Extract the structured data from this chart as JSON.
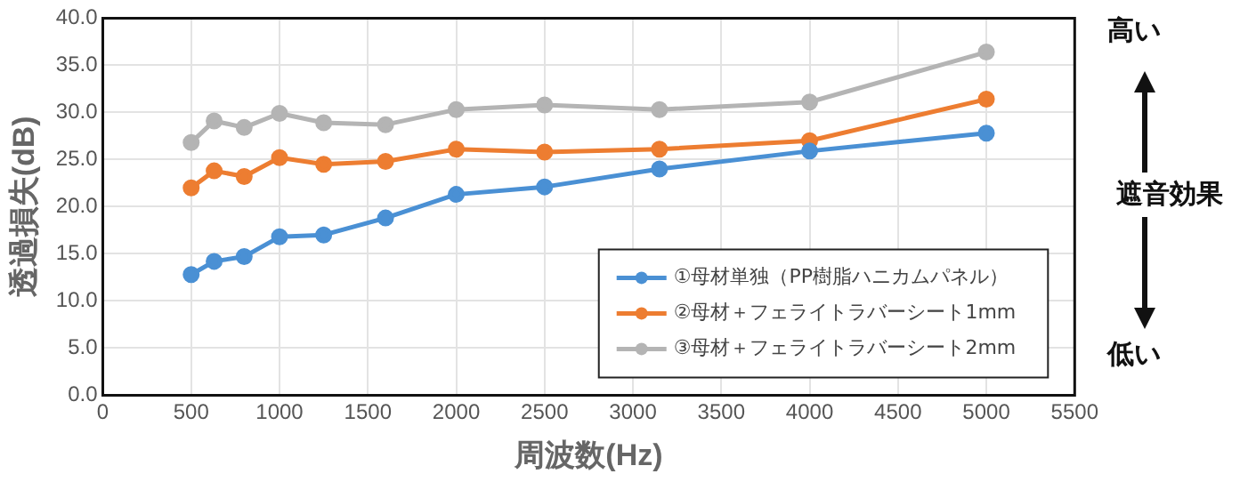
{
  "chart_data": {
    "type": "line",
    "xlabel": "周波数(Hz)",
    "ylabel": "透過損失(dB)",
    "x": [
      500,
      630,
      800,
      1000,
      1250,
      1600,
      2000,
      2500,
      3150,
      4000,
      5000
    ],
    "series": [
      {
        "name": "①母材単独（PP樹脂ハニカムパネル）",
        "color": "#4a90d4",
        "values": [
          12.8,
          14.2,
          14.7,
          16.8,
          17.0,
          18.8,
          21.3,
          22.1,
          24.0,
          25.9,
          27.8
        ]
      },
      {
        "name": "②母材＋フェライトラバーシート1mm",
        "color": "#ed7d31",
        "values": [
          22.0,
          23.8,
          23.2,
          25.2,
          24.5,
          24.8,
          26.1,
          25.8,
          26.1,
          27.0,
          31.4
        ]
      },
      {
        "name": "③母材＋フェライトラバーシート2mm",
        "color": "#b4b4b4",
        "values": [
          26.8,
          29.1,
          28.4,
          29.9,
          28.9,
          28.7,
          30.3,
          30.8,
          30.3,
          31.1,
          36.4
        ]
      }
    ],
    "xlim": [
      0,
      5500
    ],
    "xticks": [
      0,
      500,
      1000,
      1500,
      2000,
      2500,
      3000,
      3500,
      4000,
      4500,
      5000,
      5500
    ],
    "ylim": [
      0,
      40
    ],
    "yticks": [
      {
        "value": 0,
        "label": "0.0"
      },
      {
        "value": 5,
        "label": "5.0"
      },
      {
        "value": 10,
        "label": "10.0"
      },
      {
        "value": 15,
        "label": "15.0"
      },
      {
        "value": 20,
        "label": "20.0"
      },
      {
        "value": 25,
        "label": "25.0"
      },
      {
        "value": 30,
        "label": "30.0"
      },
      {
        "value": 35,
        "label": "35.0"
      },
      {
        "value": 40,
        "label": "40.0"
      }
    ],
    "annotations": [
      "高い",
      "遮音効果",
      "低い"
    ],
    "grid": true,
    "legend": "bottom right",
    "marker": "circle",
    "line_style": "solid"
  }
}
